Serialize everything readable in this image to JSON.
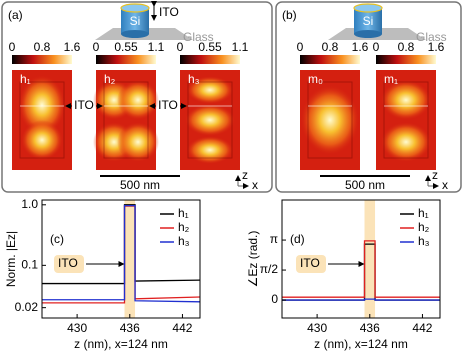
{
  "panels": [
    {
      "label": "(a)",
      "cylinder": "Si",
      "ito": "ITO",
      "glass": "Glass",
      "colorbars": [
        [
          0,
          0.8,
          1.6
        ],
        [
          0,
          0.55,
          1.1
        ],
        [
          0,
          0.55,
          1.1
        ]
      ],
      "modes": [
        "h₁",
        "h₂",
        "h₃"
      ],
      "ito_marks": [
        "ITO",
        "ITO"
      ],
      "scale": "500 nm",
      "axes": [
        "z",
        "x"
      ]
    },
    {
      "label": "(b)",
      "cylinder": "Si",
      "glass": "Glass",
      "colorbars": [
        [
          0,
          0.8,
          1.6
        ],
        [
          0,
          0.8,
          1.6
        ]
      ],
      "modes": [
        "m₀",
        "m₁"
      ],
      "scale": "500 nm",
      "axes": [
        "z",
        "x"
      ]
    }
  ],
  "chart_data": [
    {
      "type": "line",
      "title": "(c)",
      "ylabel": "Norm. |Ez|",
      "xlabel": "z (nm), x=124 nm",
      "log_y": true,
      "x": [
        426,
        435.4,
        435.4,
        436.6,
        436.6,
        444
      ],
      "xlim": [
        426,
        444
      ],
      "xticks": [
        430,
        436,
        442
      ],
      "ylim": [
        0.0135,
        1.2
      ],
      "yticks": [
        {
          "value": 0.02,
          "label": "0.02"
        },
        0.1,
        {
          "value": 1,
          "label": "1.0"
        }
      ],
      "shaded_region": [
        435.4,
        436.6
      ],
      "shaded_color": "#fbe3b8",
      "annotation": "ITO",
      "legend": "upper right",
      "series": [
        {
          "name": "h₁",
          "color": "#000000",
          "values": [
            0.05,
            0.05,
            1.0,
            1.0,
            0.055,
            0.057
          ]
        },
        {
          "name": "h₂",
          "color": "#e02020",
          "values": [
            0.024,
            0.024,
            0.95,
            0.95,
            0.028,
            0.03
          ]
        },
        {
          "name": "h₃",
          "color": "#2030d0",
          "values": [
            0.027,
            0.027,
            0.97,
            0.97,
            0.026,
            0.025
          ]
        }
      ]
    },
    {
      "type": "line",
      "title": "(d)",
      "ylabel": "∠Ez (rad.)",
      "xlabel": "z (nm), x=124 nm",
      "log_y": false,
      "x": [
        426,
        435.4,
        435.4,
        436.6,
        436.6,
        444
      ],
      "xlim": [
        426,
        444
      ],
      "xticks": [
        430,
        436,
        442
      ],
      "ylim": [
        -0.94,
        5.24
      ],
      "yticks": [
        0,
        {
          "value": 1.5708,
          "label": "π/2"
        },
        {
          "value": 3.1416,
          "label": "π"
        }
      ],
      "shaded_region": [
        435.4,
        436.6
      ],
      "shaded_color": "#fbe3b8",
      "annotation": "ITO",
      "legend": "upper right",
      "series": [
        {
          "name": "h₁",
          "color": "#000000",
          "values": [
            0,
            0,
            2.93,
            2.93,
            0,
            0
          ]
        },
        {
          "name": "h₂",
          "color": "#e02020",
          "values": [
            0.15,
            0.15,
            3.1,
            3.1,
            0.15,
            0.15
          ]
        },
        {
          "name": "h₃",
          "color": "#2030d0",
          "values": [
            0,
            0,
            0.05,
            0.05,
            0,
            0
          ]
        }
      ]
    }
  ]
}
